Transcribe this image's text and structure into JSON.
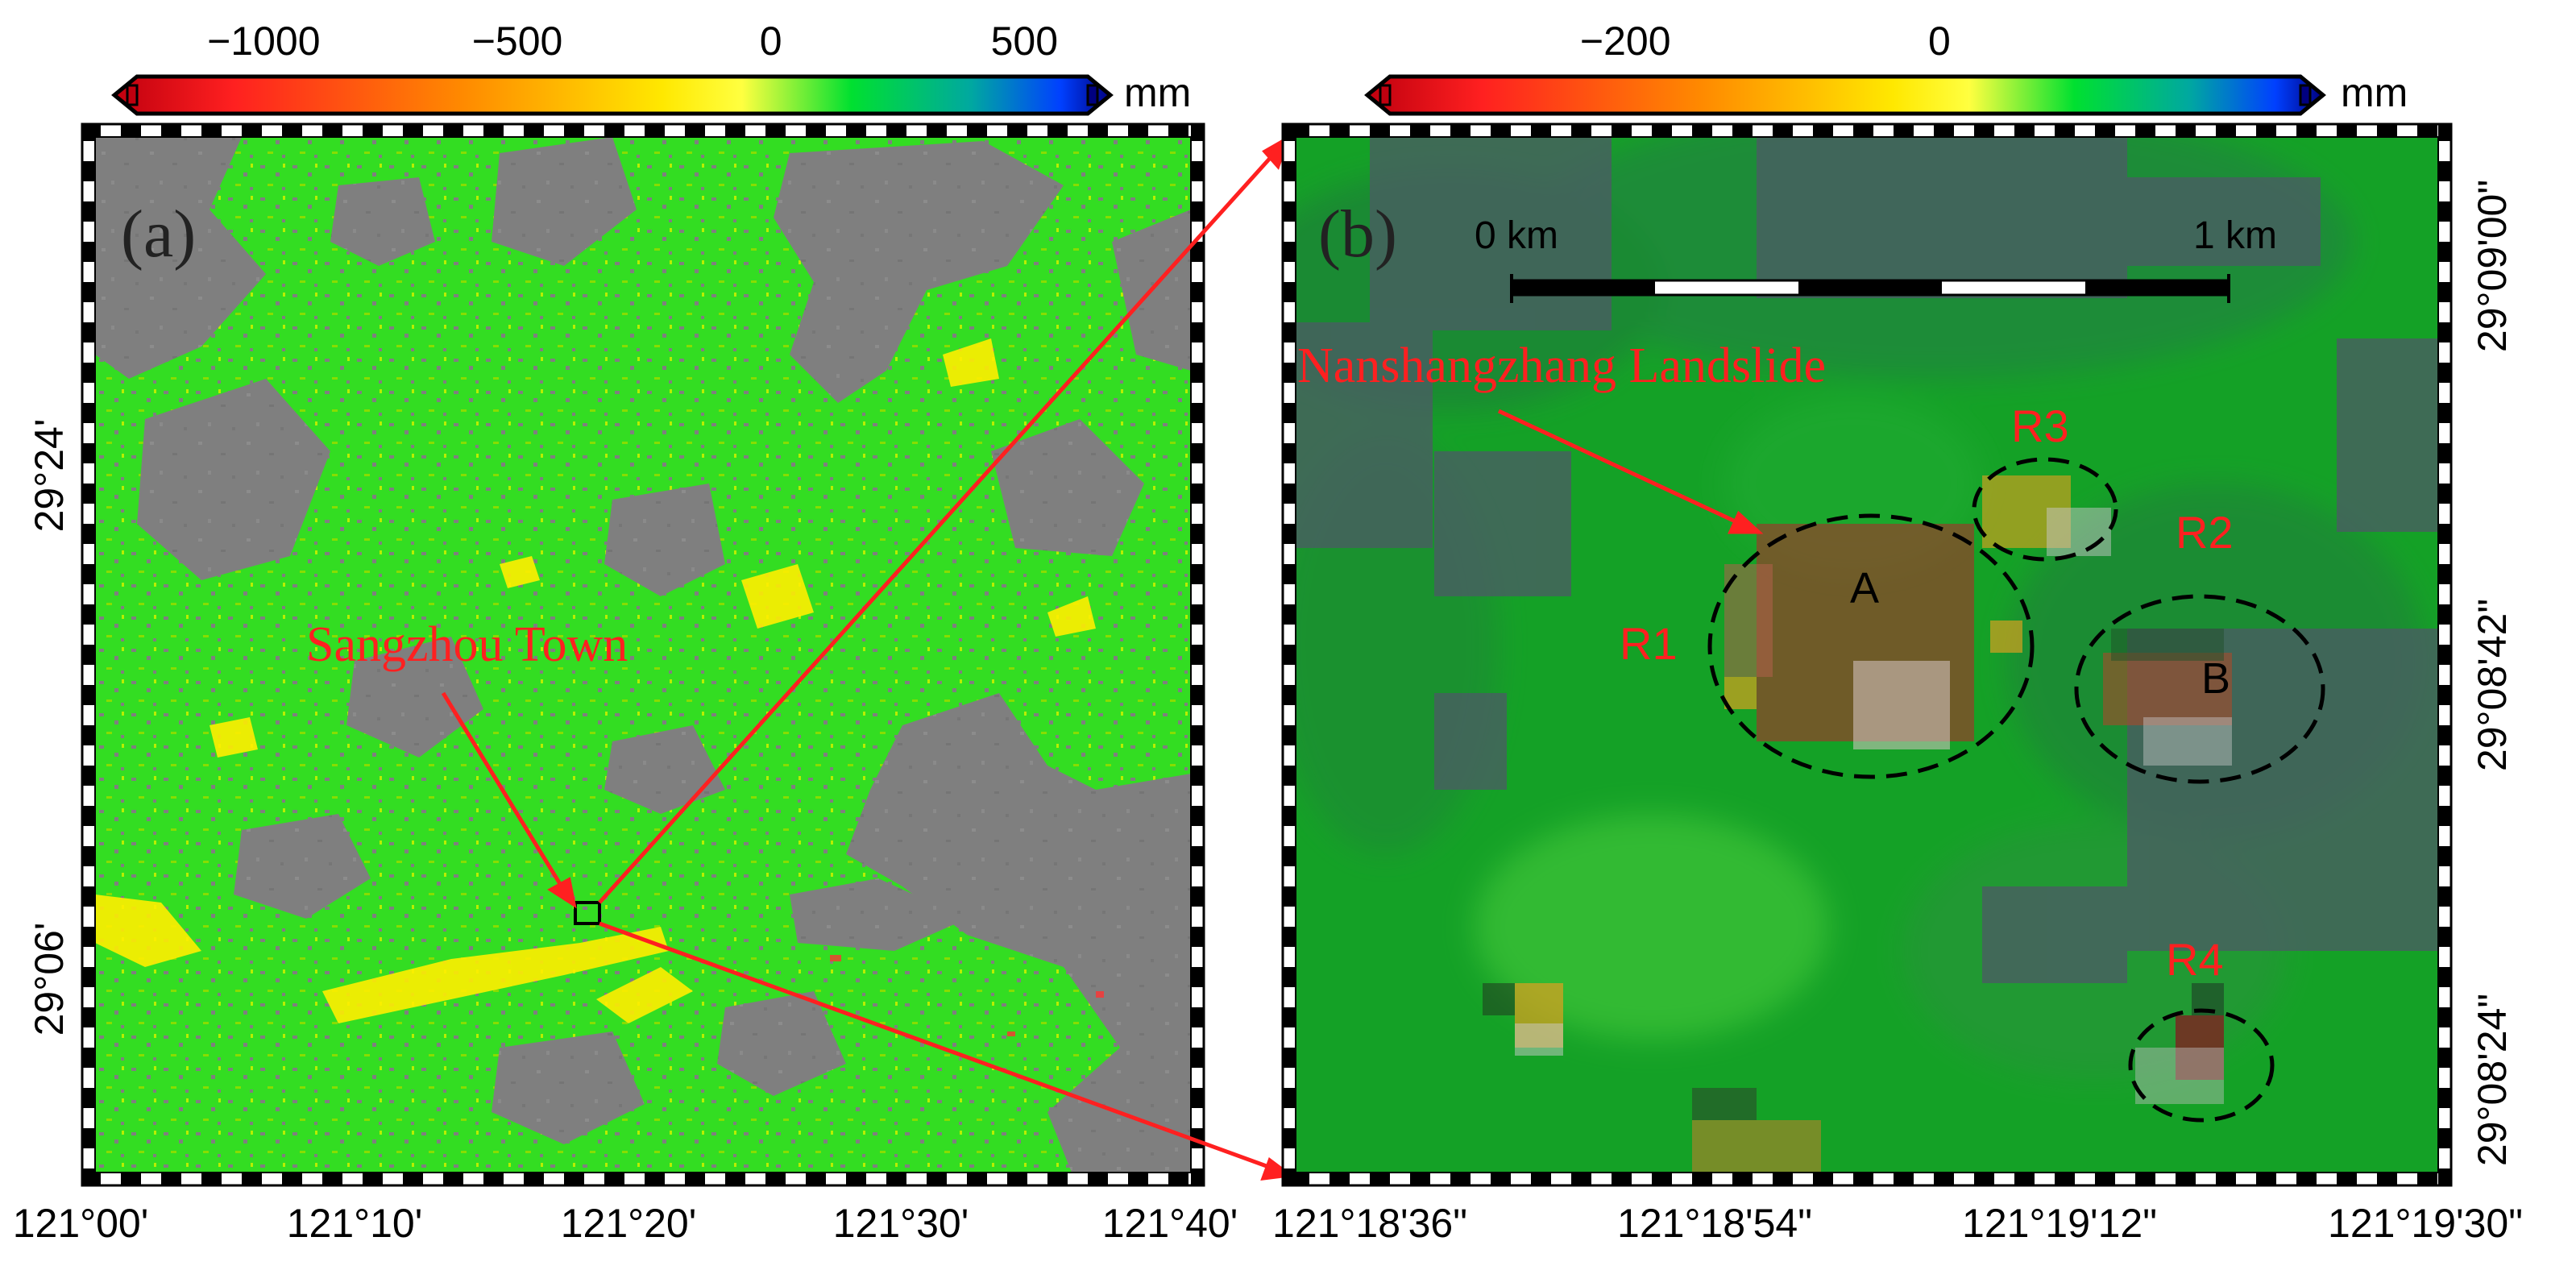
{
  "colorbar_a": {
    "ticks": [
      {
        "value": -1000,
        "label": "−1000"
      },
      {
        "value": -500,
        "label": "−500"
      },
      {
        "value": 0,
        "label": "0"
      },
      {
        "value": 500,
        "label": "500"
      }
    ],
    "range": [
      -1250,
      625
    ],
    "unit": "mm"
  },
  "colorbar_b": {
    "ticks": [
      {
        "value": -200,
        "label": "−200"
      },
      {
        "value": 0,
        "label": "0"
      }
    ],
    "range": [
      -350,
      230
    ],
    "unit": "mm"
  },
  "colormap": [
    "#c0000f",
    "#ff2020",
    "#ff8a00",
    "#ffe800",
    "#ffff40",
    "#00e030",
    "#00a8a0",
    "#0040ff",
    "#000080"
  ],
  "panel_a": {
    "label": "(a)",
    "town_label": "Sangzhou Town",
    "x_ticks": [
      "121°00'",
      "121°10'",
      "121°20'",
      "121°30'",
      "121°40'"
    ],
    "y_ticks": [
      "29°24'",
      "29°06'"
    ]
  },
  "panel_b": {
    "label": "(b)",
    "scale_start": "0 km",
    "scale_end": "1 km",
    "landslide_label": "Nanshangzhang Landslide",
    "regions": [
      "R1",
      "R2",
      "R3",
      "R4"
    ],
    "letters": [
      "A",
      "B"
    ],
    "x_ticks": [
      "121°18'36\"",
      "121°18'54\"",
      "121°19'12\"",
      "121°19'30\""
    ],
    "y_ticks": [
      "29°09'00\"",
      "29°08'42\"",
      "29°08'24\""
    ]
  }
}
